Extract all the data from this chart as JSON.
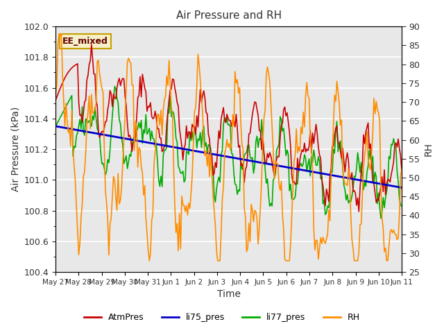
{
  "title": "Air Pressure and RH",
  "xlabel": "Time",
  "ylabel_left": "Air Pressure (kPa)",
  "ylabel_right": "RH",
  "ylim_left": [
    100.4,
    102.0
  ],
  "ylim_right": [
    25,
    90
  ],
  "bg_color": "#e8e8e8",
  "annotation_text": "EE_mixed",
  "annotation_bg": "#f5f0c8",
  "annotation_border": "#c8a000",
  "x_tick_labels": [
    "May 27",
    "May 28",
    "May 29",
    "May 30",
    "May 31",
    "Jun 1",
    "Jun 2",
    "Jun 3",
    "Jun 4",
    "Jun 5",
    "Jun 6",
    "Jun 7",
    "Jun 8",
    "Jun 9",
    "Jun 10",
    "Jun 11"
  ],
  "x_ticks": [
    0,
    1,
    2,
    3,
    4,
    5,
    6,
    7,
    8,
    9,
    10,
    11,
    12,
    13,
    14,
    15
  ],
  "li75_line_x": [
    0.0,
    15.0
  ],
  "li75_line_y": [
    101.35,
    100.95
  ],
  "line_colors": {
    "atm": "#cc0000",
    "li75": "#0000cc",
    "li77": "#00aa00",
    "rh": "#ff8c00"
  },
  "legend_labels": [
    "AtmPres",
    "li75_pres",
    "li77_pres",
    "RH"
  ],
  "legend_colors": [
    "#cc0000",
    "#0000cc",
    "#00aa00",
    "#ff8c00"
  ]
}
